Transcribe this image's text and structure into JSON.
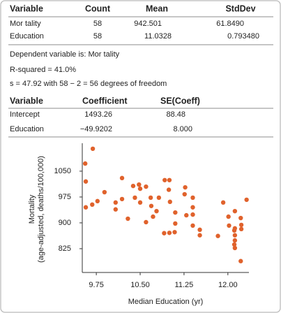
{
  "summary": {
    "headers": [
      "Variable",
      "Count",
      "Mean",
      "StdDev"
    ],
    "rows": [
      [
        "Mor tality",
        "58",
        "942.501",
        "61.8490"
      ],
      [
        "Education",
        "58",
        "11.0328",
        "0.793480"
      ]
    ]
  },
  "regression": {
    "dependent": "Dependent variable is: Mor tality",
    "r_squared": "R-squared  = 41.0%",
    "s": "s = 47.92 with 58 − 2 = 56 degrees of freedom",
    "headers": [
      "Variable",
      "Coefficient",
      "SE(Coeff)"
    ],
    "rows": [
      [
        "Intercept",
        "1493.26",
        "88.48"
      ],
      [
        "Education",
        "−49.9202",
        "8.000"
      ]
    ]
  },
  "chart_data": {
    "type": "scatter",
    "xlabel": "Median Education (yr)",
    "ylabel": [
      "Mortality",
      "(age-adjusted, deaths/100,000)"
    ],
    "color": "#e0622c",
    "x": [
      9.69,
      9.56,
      9.57,
      9.57,
      9.68,
      9.77,
      9.89,
      10.08,
      10.08,
      10.19,
      10.19,
      10.29,
      10.38,
      10.41,
      10.48,
      10.5,
      10.6,
      10.6,
      10.68,
      10.69,
      10.72,
      10.78,
      10.82,
      10.91,
      10.92,
      11.0,
      10.99,
      11.01,
      11.1,
      11.1,
      11.09,
      11.27,
      11.29,
      11.4,
      11.4,
      11.4,
      11.4,
      11.52,
      11.52,
      11.83,
      11.92,
      12.01,
      12.02,
      12.12,
      12.12,
      12.12,
      12.12,
      12.12,
      12.22,
      12.23,
      12.23,
      12.22,
      12.32,
      12.11,
      11.26,
      10.5,
      11.0,
      12.11
    ],
    "values": [
      1115,
      1072,
      1020,
      945,
      953,
      963,
      989,
      959,
      939,
      969,
      1030,
      912,
      1007,
      973,
      1011,
      999,
      1005,
      902,
      973,
      949,
      918,
      934,
      973,
      870,
      1024,
      1024,
      996,
      961,
      930,
      898,
      873,
      1003,
      922,
      924,
      973,
      945,
      892,
      864,
      880,
      862,
      959,
      918,
      892,
      884,
      864,
      849,
      827,
      934,
      914,
      894,
      882,
      789,
      967,
      837,
      983,
      959,
      871,
      878
    ],
    "xlim": [
      9.51,
      12.36
    ],
    "ylim": [
      756,
      1131
    ],
    "xticks": [
      9.75,
      {
        "value": 10.5,
        "label": "10.50"
      },
      11.25,
      {
        "value": 12,
        "label": "12.00"
      }
    ],
    "yticks": [
      825,
      900,
      975,
      1050
    ]
  }
}
